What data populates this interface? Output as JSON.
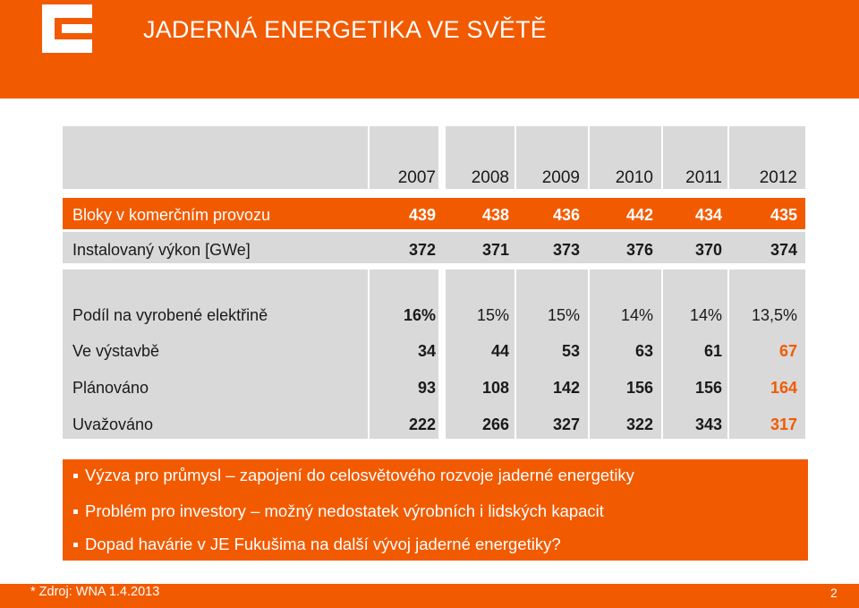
{
  "header": {
    "title": "JADERNÁ ENERGETIKA VE SVĚTĚ",
    "logo_icon": "cez-logo-icon"
  },
  "table": {
    "years": [
      "2007",
      "2008",
      "2009",
      "2010",
      "2011",
      "2012"
    ],
    "rows": [
      {
        "label": "Bloky v komerčním provozu",
        "values": [
          "439",
          "438",
          "436",
          "442",
          "434",
          "435"
        ]
      },
      {
        "label": "Instalovaný výkon [GWe]",
        "values": [
          "372",
          "371",
          "373",
          "376",
          "370",
          "374"
        ]
      },
      {
        "label": "Podíl na vyrobené elektřině",
        "values": [
          "16%",
          "15%",
          "15%",
          "14%",
          "14%",
          "13,5%"
        ]
      },
      {
        "label": "Ve výstavbě",
        "values": [
          "34",
          "44",
          "53",
          "63",
          "61",
          "67"
        ]
      },
      {
        "label": "Plánováno",
        "values": [
          "93",
          "108",
          "142",
          "156",
          "156",
          "164"
        ]
      },
      {
        "label": "Uvažováno",
        "values": [
          "222",
          "266",
          "327",
          "322",
          "343",
          "317"
        ]
      }
    ]
  },
  "bullets": [
    "Výzva pro průmysl – zapojení do celosvětového rozvoje jaderné energetiky",
    "Problém pro investory – možný nedostatek výrobních i lidských kapacit",
    "Dopad havárie v JE Fukušima na další vývoj jaderné energetiky?"
  ],
  "footer": {
    "source": "* Zdroj: WNA 1.4.2013",
    "page_number": "2"
  },
  "colors": {
    "brand_orange": "#f25a00",
    "table_grey": "#d9d9d9",
    "highlight_text": "#f25a00"
  }
}
